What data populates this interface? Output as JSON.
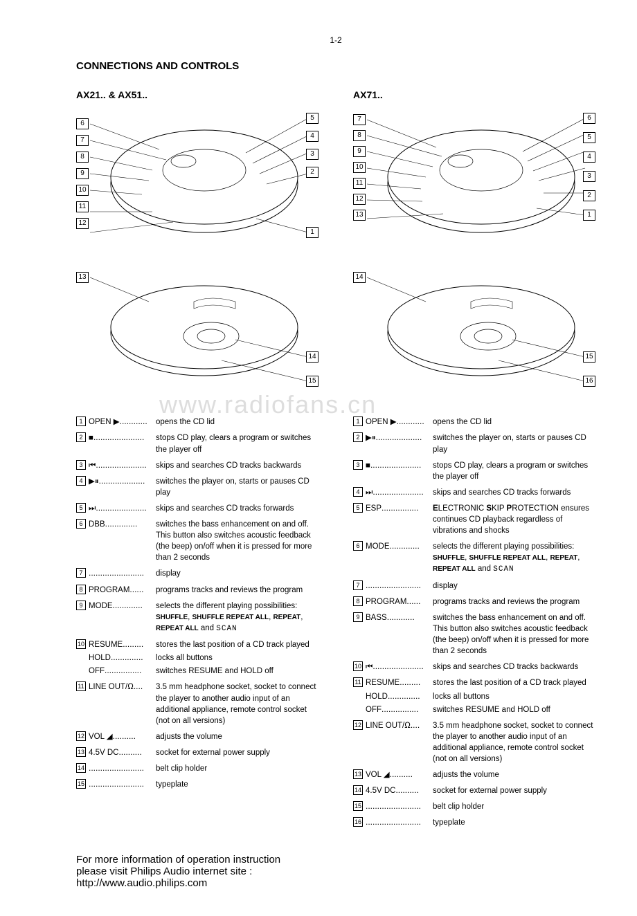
{
  "page_number": "1-2",
  "main_heading": "CONNECTIONS AND CONTROLS",
  "watermark": "www.radiofans.cn",
  "left": {
    "model": "AX21.. & AX51..",
    "top_callouts_left": [
      "6",
      "7",
      "8",
      "9",
      "10",
      "11",
      "12"
    ],
    "top_callouts_right": [
      "5",
      "4",
      "3",
      "2",
      "1"
    ],
    "bottom_callouts_left": [
      "13"
    ],
    "bottom_callouts_right": [
      "14",
      "15"
    ],
    "items": [
      {
        "n": "1",
        "label": "OPEN ▶",
        "dots": "............",
        "text": "opens the CD lid"
      },
      {
        "n": "2",
        "label": "■",
        "dots": "......................",
        "text": "stops CD play, clears a program or switches the player off"
      },
      {
        "n": "3",
        "label": "⏮",
        "dots": "......................",
        "text": "skips and searches CD tracks backwards"
      },
      {
        "n": "4",
        "label": "▶⏸",
        "dots": "....................",
        "text": "switches the player on, starts or pauses CD play"
      },
      {
        "n": "5",
        "label": "⏭",
        "dots": "......................",
        "text": "skips and searches CD tracks forwards"
      },
      {
        "n": "6",
        "label": "DBB",
        "dots": "..............",
        "text": "switches the bass enhancement on and off. This button also switches acoustic feedback (the beep) on/off when it is pressed for more than 2 seconds"
      },
      {
        "n": "7",
        "label": "",
        "dots": "........................",
        "text": "display"
      },
      {
        "n": "8",
        "label": "PROGRAM",
        "dots": "......",
        "text": "programs tracks and reviews the program"
      },
      {
        "n": "9",
        "label": "MODE",
        "dots": ".............",
        "text_html": "selects the different playing possibilities: <span class=\"small-caps\">SHUFFLE</span>, <span class=\"small-caps\">SHUFFLE REPEAT ALL</span>, <span class=\"small-caps\">REPEAT</span>, <span class=\"small-caps\">REPEAT ALL</span> and <span class=\"scan\">SCAN</span>"
      },
      {
        "n": "10",
        "multi": [
          {
            "label": "RESUME",
            "dots": ".........",
            "text": "stores the last position of a CD track played"
          },
          {
            "label": "HOLD",
            "dots": "..............",
            "text": "locks all buttons"
          },
          {
            "label": "OFF",
            "dots": "................",
            "text": "switches RESUME and HOLD off"
          }
        ]
      },
      {
        "n": "11",
        "label": "LINE OUT/Ω",
        "dots": "....",
        "text": "3.5 mm headphone socket, socket to connect the player to another audio input of an additional appliance, remote control socket (not on all versions)"
      },
      {
        "n": "12",
        "label": "VOL ◢",
        "dots": "..........",
        "text": "adjusts the volume"
      },
      {
        "n": "13",
        "label": "4.5V DC",
        "dots": "..........",
        "text": "socket for external power supply"
      },
      {
        "n": "14",
        "label": "",
        "dots": "........................",
        "text": "belt clip holder"
      },
      {
        "n": "15",
        "label": "",
        "dots": "........................",
        "text": "typeplate"
      }
    ]
  },
  "right": {
    "model": "AX71..",
    "top_callouts_left": [
      "7",
      "8",
      "9",
      "10",
      "11",
      "12",
      "13"
    ],
    "top_callouts_right": [
      "6",
      "5",
      "4",
      "3",
      "2",
      "1"
    ],
    "bottom_callouts_left": [
      "14"
    ],
    "bottom_callouts_right": [
      "15",
      "16"
    ],
    "items": [
      {
        "n": "1",
        "label": "OPEN ▶",
        "dots": "............",
        "text": "opens the CD lid"
      },
      {
        "n": "2",
        "label": "▶⏸",
        "dots": "....................",
        "text": "switches the player on, starts or pauses CD play"
      },
      {
        "n": "3",
        "label": "■",
        "dots": "......................",
        "text": "stops CD play, clears a program or switches the player off"
      },
      {
        "n": "4",
        "label": "⏭",
        "dots": "......................",
        "text": "skips and searches CD tracks forwards"
      },
      {
        "n": "5",
        "label": "ESP",
        "dots": "................",
        "text_html": "<b>E</b>LECTRONIC <b>S</b>KIP <b>P</b>ROTECTION ensures continues CD playback regardless of vibrations and shocks"
      },
      {
        "n": "6",
        "label": "MODE",
        "dots": ".............",
        "text_html": "selects the different playing possibilities: <span class=\"small-caps\">SHUFFLE</span>, <span class=\"small-caps\">SHUFFLE REPEAT ALL</span>, <span class=\"small-caps\">REPEAT</span>, <span class=\"small-caps\">REPEAT ALL</span> and <span class=\"scan\">SCAN</span>"
      },
      {
        "n": "7",
        "label": "",
        "dots": "........................",
        "text": "display"
      },
      {
        "n": "8",
        "label": "PROGRAM",
        "dots": "......",
        "text": "programs tracks and reviews the program"
      },
      {
        "n": "9",
        "label": "BASS",
        "dots": "............",
        "text": "switches the bass enhancement on and off. This button also switches acoustic feedback (the beep) on/off when it is pressed for more than 2 seconds"
      },
      {
        "n": "10",
        "label": "⏮",
        "dots": "......................",
        "text": "skips and searches CD tracks backwards"
      },
      {
        "n": "11",
        "multi": [
          {
            "label": "RESUME",
            "dots": ".........",
            "text": "stores the last position of a CD track played"
          },
          {
            "label": "HOLD",
            "dots": "..............",
            "text": "locks all buttons"
          },
          {
            "label": "OFF",
            "dots": "................",
            "text": "switches RESUME and HOLD off"
          }
        ]
      },
      {
        "n": "12",
        "label": "LINE OUT/Ω",
        "dots": "....",
        "text": "3.5 mm headphone socket, socket to connect the player to another audio input of an additional appliance, remote control socket (not on all versions)"
      },
      {
        "n": "13",
        "label": "VOL ◢",
        "dots": "..........",
        "text": "adjusts the volume"
      },
      {
        "n": "14",
        "label": "4.5V DC",
        "dots": "..........",
        "text": "socket for external power supply"
      },
      {
        "n": "15",
        "label": "",
        "dots": "........................",
        "text": "belt clip holder"
      },
      {
        "n": "16",
        "label": "",
        "dots": "........................",
        "text": "typeplate"
      }
    ]
  },
  "footer": {
    "line1": "For more information of operation instruction",
    "line2": "please visit Philips Audio internet site :",
    "line3": "http://www.audio.philips.com"
  }
}
